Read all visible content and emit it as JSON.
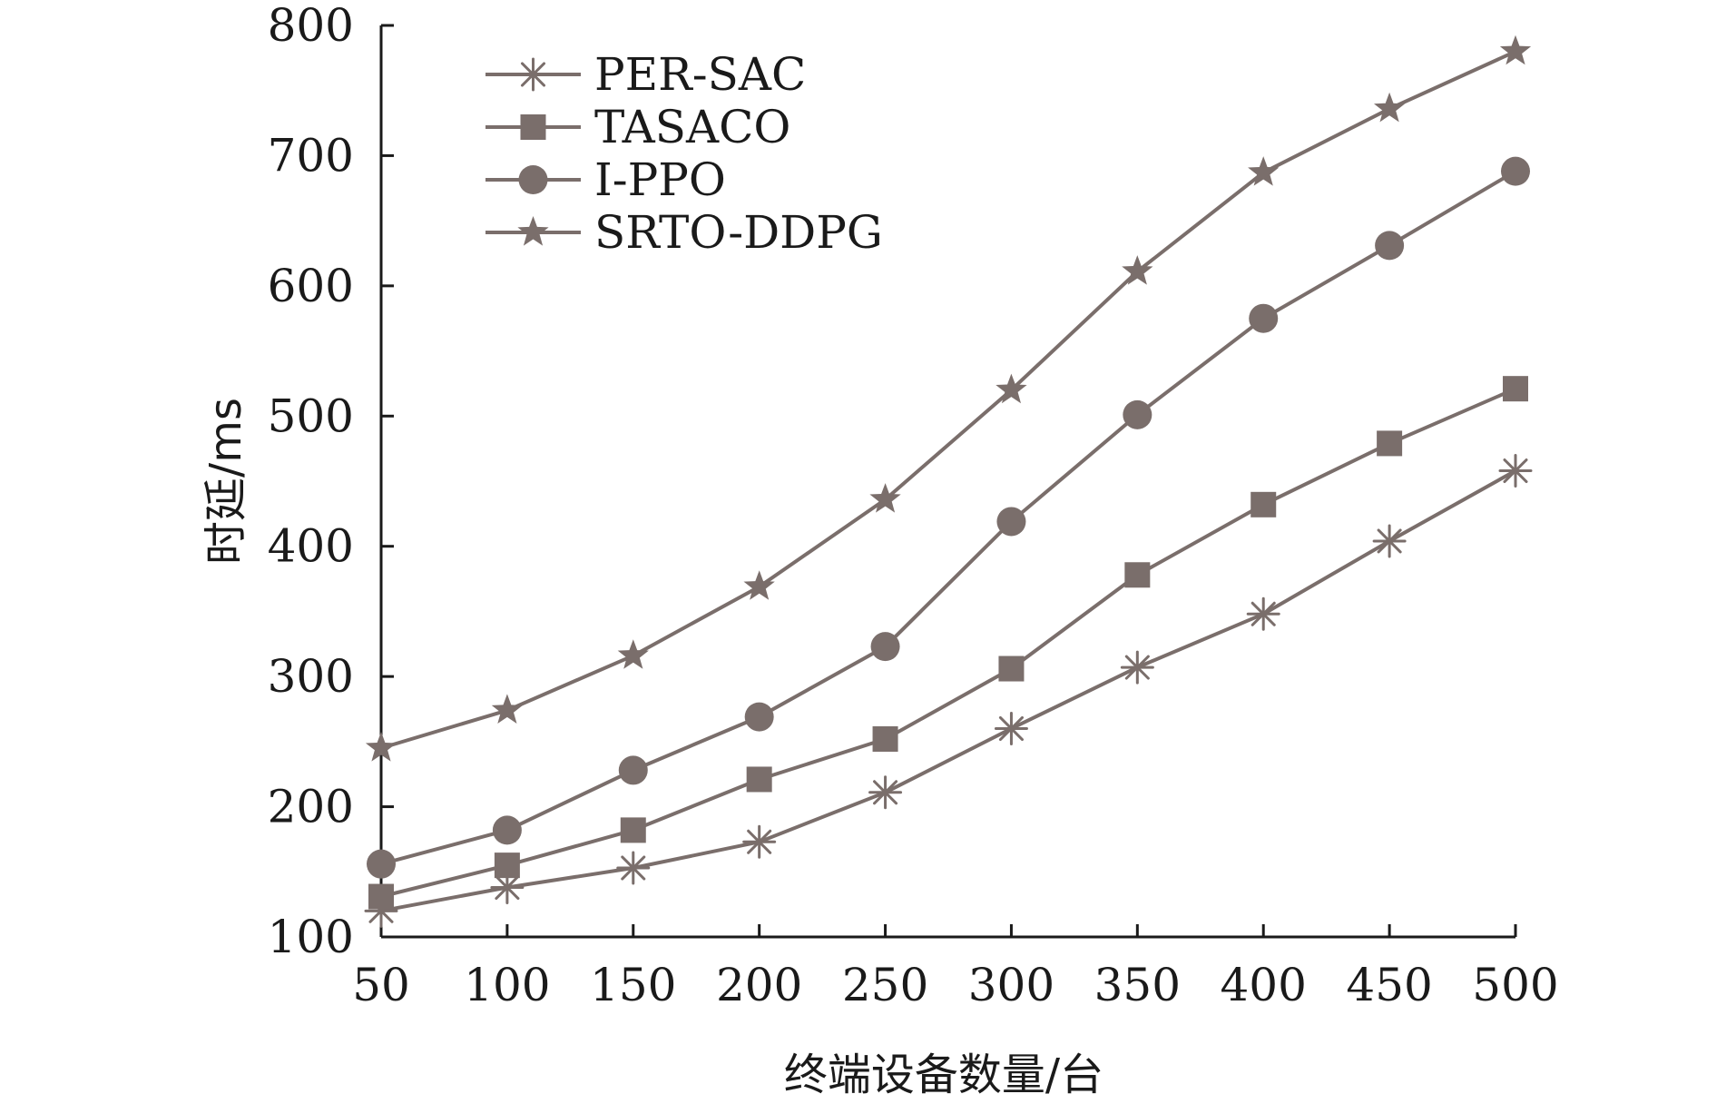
{
  "chart_data": {
    "type": "line",
    "x": [
      50,
      100,
      150,
      200,
      250,
      300,
      350,
      400,
      450,
      500
    ],
    "xlabel": "终端设备数量/台",
    "ylabel": "时延/ms",
    "xlim": [
      50,
      500
    ],
    "ylim": [
      100,
      800
    ],
    "xticks": [
      "50",
      "100",
      "150",
      "200",
      "250",
      "300",
      "350",
      "400",
      "450",
      "500"
    ],
    "yticks": [
      "100",
      "200",
      "300",
      "400",
      "500",
      "600",
      "700",
      "800"
    ],
    "grid": false,
    "legend_position": "top-left",
    "line_color": "#7a6e6b",
    "series": [
      {
        "name": "PER-SAC",
        "marker": "asterisk",
        "values": [
          120,
          138,
          153,
          173,
          211,
          260,
          307,
          348,
          404,
          458
        ]
      },
      {
        "name": "TASACO",
        "marker": "square",
        "values": [
          131,
          155,
          182,
          221,
          252,
          306,
          378,
          432,
          479,
          521
        ]
      },
      {
        "name": "I-PPO",
        "marker": "circle",
        "values": [
          156,
          182,
          228,
          269,
          323,
          419,
          501,
          575,
          631,
          688
        ]
      },
      {
        "name": "SRTO-DDPG",
        "marker": "star",
        "values": [
          245,
          274,
          316,
          369,
          436,
          520,
          611,
          687,
          736,
          780
        ]
      }
    ]
  }
}
